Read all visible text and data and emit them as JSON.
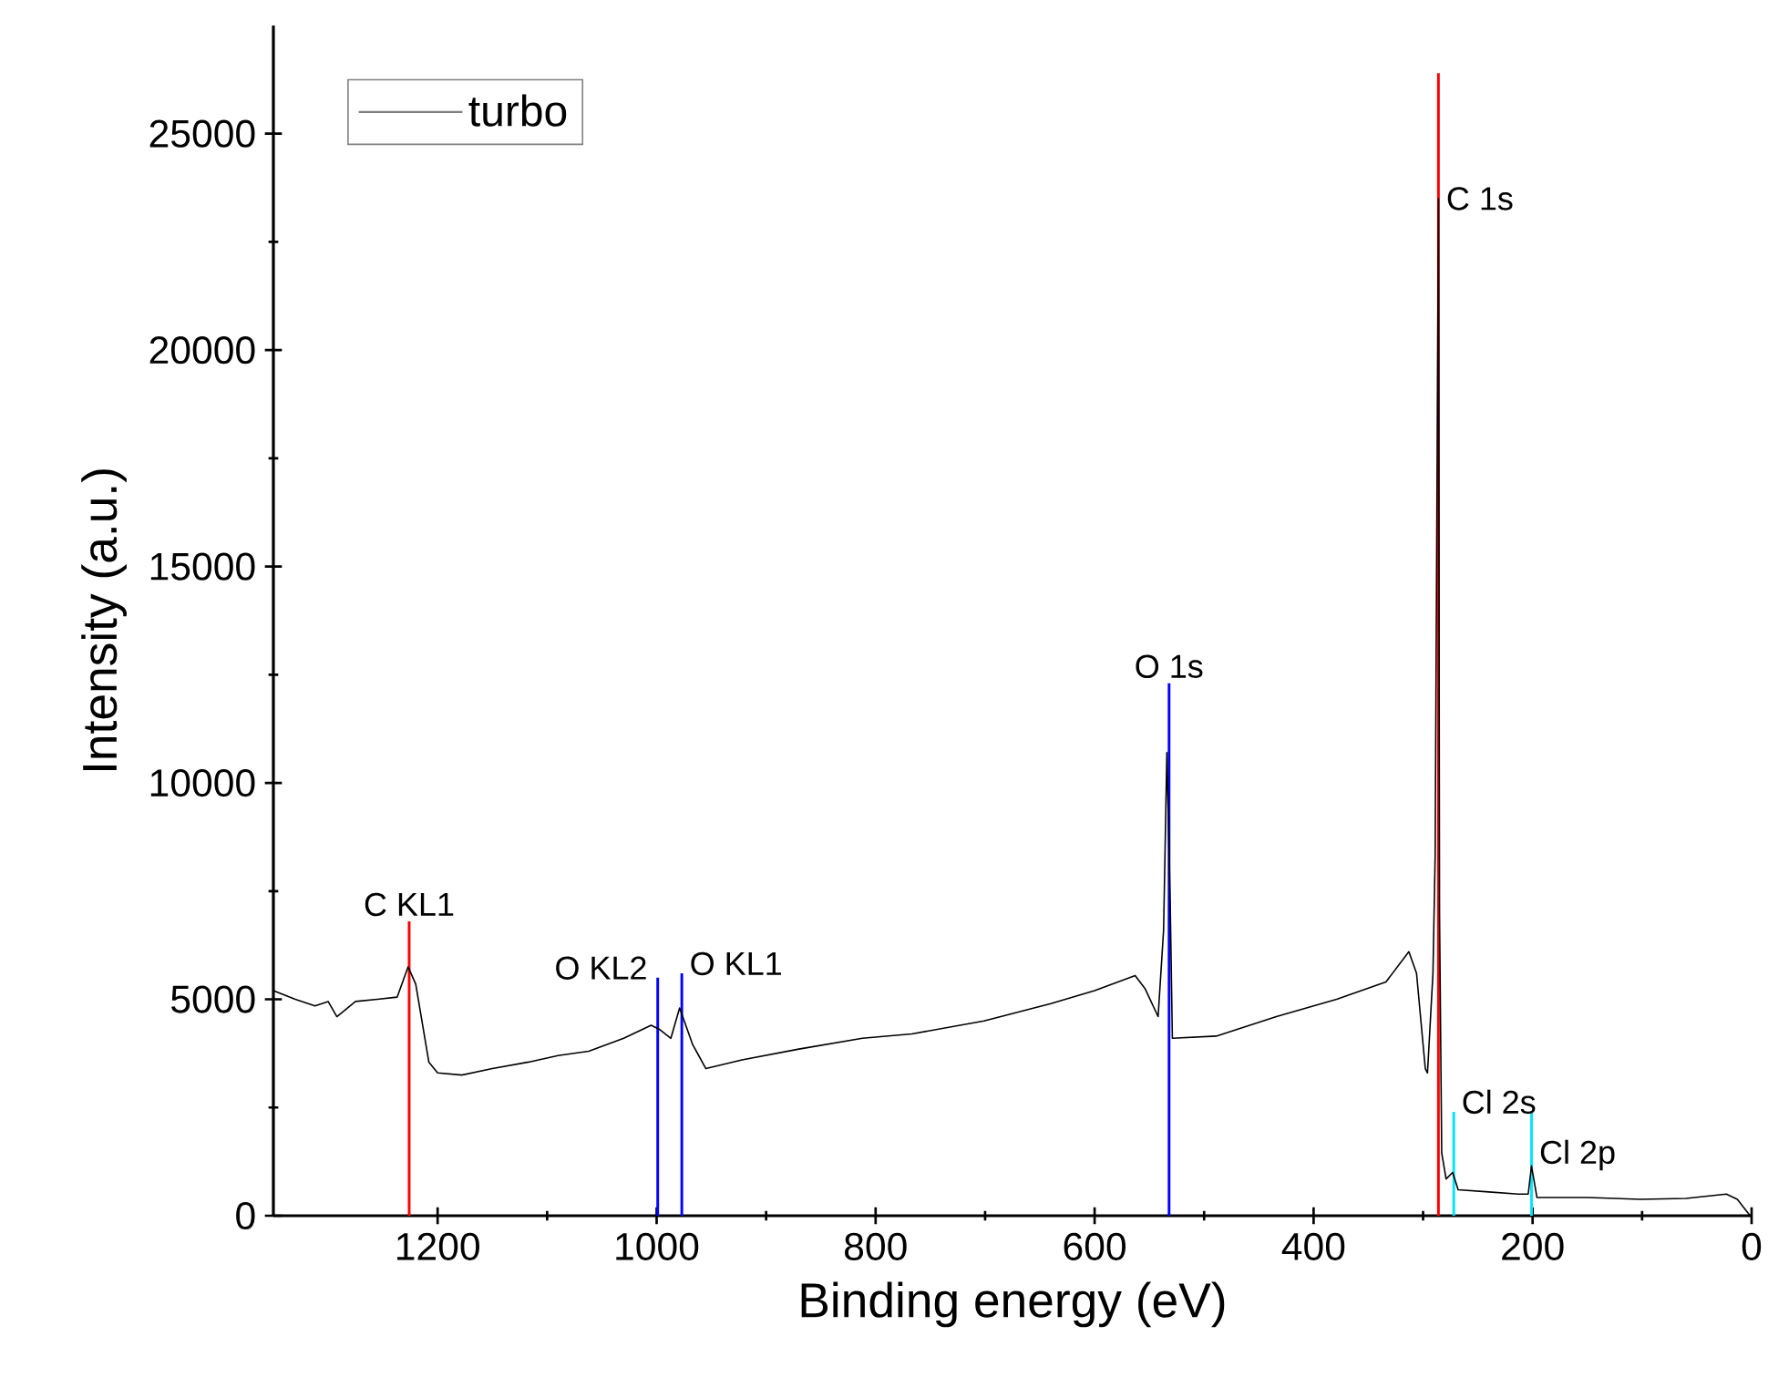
{
  "chart_data": {
    "type": "line",
    "xlabel": "Binding energy (eV)",
    "ylabel": "Intensity (a.u.)",
    "xlim": [
      1350,
      0
    ],
    "ylim": [
      0,
      27500
    ],
    "xticks": [
      1200,
      1000,
      800,
      600,
      400,
      200,
      0
    ],
    "yticks": [
      0,
      5000,
      10000,
      15000,
      20000,
      25000
    ],
    "legend": "top left",
    "grid": false,
    "marker": "none",
    "line_style": "solid",
    "series": [
      {
        "name": "turbo",
        "color": "#000000",
        "x": [
          1350,
          1330,
          1312,
          1300,
          1292,
          1275,
          1255,
          1237,
          1227,
          1220,
          1208,
          1200,
          1178,
          1150,
          1117,
          1090,
          1062,
          1030,
          1005,
          997,
          987,
          979,
          967,
          955,
          922,
          870,
          812,
          767,
          701,
          640,
          600,
          563,
          554,
          542,
          537,
          534,
          531,
          529,
          489,
          434,
          379,
          334,
          313,
          306,
          298,
          296,
          291,
          289,
          286,
          285,
          283,
          279,
          273,
          268,
          240,
          213,
          204,
          201,
          196,
          150,
          101,
          60,
          23,
          13,
          2,
          0
        ],
        "values": [
          5200,
          5000,
          4850,
          4950,
          4600,
          4950,
          5000,
          5050,
          5750,
          5350,
          3550,
          3300,
          3250,
          3400,
          3550,
          3700,
          3800,
          4100,
          4400,
          4300,
          4100,
          4800,
          3950,
          3400,
          3600,
          3850,
          4100,
          4200,
          4500,
          4900,
          5200,
          5550,
          5250,
          4600,
          6600,
          10700,
          7300,
          4100,
          4150,
          4600,
          5000,
          5400,
          6100,
          5600,
          3400,
          3300,
          5600,
          8300,
          23500,
          7000,
          1450,
          850,
          1000,
          600,
          550,
          500,
          500,
          1150,
          420,
          420,
          380,
          400,
          500,
          380,
          20,
          0
        ]
      },
      {
        "type": "line",
        "color": "#ff0000",
        "x": [
          1226,
          1226
        ],
        "values": [
          0,
          6800
        ]
      },
      {
        "type": "line",
        "color": "#0000ff",
        "x": [
          999,
          999
        ],
        "values": [
          0,
          5500
        ]
      },
      {
        "type": "line",
        "color": "#0000ff",
        "x": [
          977,
          977
        ],
        "values": [
          0,
          5600
        ]
      },
      {
        "type": "line",
        "color": "#0000ff",
        "x": [
          532,
          532
        ],
        "values": [
          0,
          12300
        ]
      },
      {
        "type": "line",
        "color": "#ff0000",
        "x": [
          286,
          286
        ],
        "values": [
          0,
          26400
        ]
      },
      {
        "type": "line",
        "color": "#00e5ff",
        "x": [
          272,
          272
        ],
        "values": [
          0,
          2400
        ]
      },
      {
        "type": "line",
        "color": "#00e5ff",
        "x": [
          201,
          201
        ],
        "values": [
          0,
          2400
        ]
      }
    ],
    "annotations": [
      {
        "text": "C KL1",
        "x": 1226,
        "y": 6800
      },
      {
        "text": "O KL2",
        "x": 999,
        "y": 5500
      },
      {
        "text": "O KL1",
        "x": 977,
        "y": 5600
      },
      {
        "text": "O 1s",
        "x": 532,
        "y": 12300
      },
      {
        "text": "C 1s",
        "x": 286,
        "y": 23500
      },
      {
        "text": "Cl 2s",
        "x": 272,
        "y": 2400
      },
      {
        "text": "Cl 2p",
        "x": 201,
        "y": 1400
      }
    ]
  }
}
